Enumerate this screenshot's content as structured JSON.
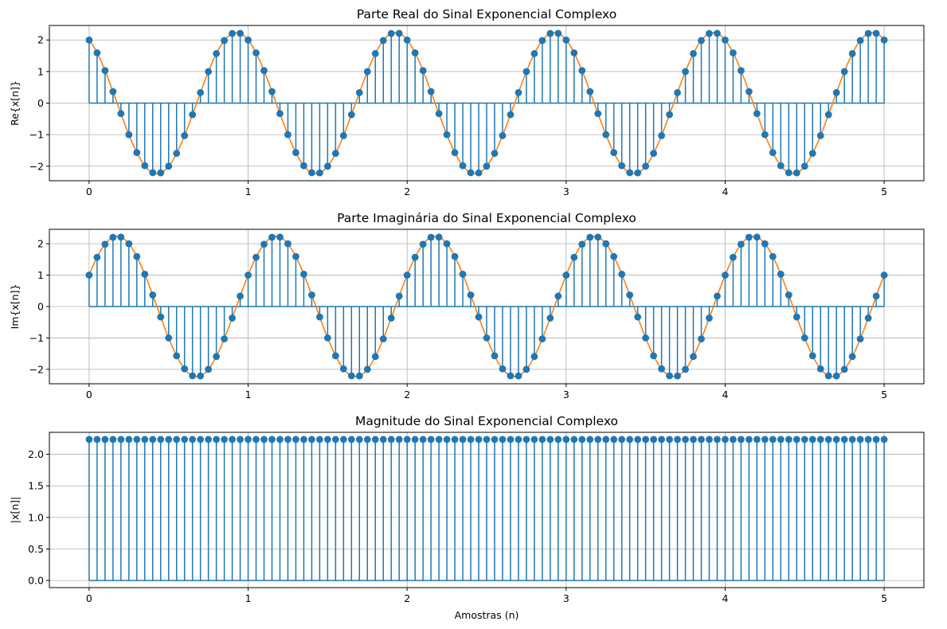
{
  "chart_data": [
    {
      "type": "stem",
      "title": "Parte Real do Sinal Exponencial Complexo",
      "xlabel": "",
      "ylabel": "Re{x[n]}",
      "xlim": [
        -0.25,
        5.25
      ],
      "ylim": [
        -2.46,
        2.46
      ],
      "xticks": [
        0,
        1,
        2,
        3,
        4,
        5
      ],
      "yticks": [
        -2,
        -1,
        0,
        1,
        2
      ],
      "grid": true,
      "samples": {
        "n_start": 0,
        "n_end": 5,
        "count": 101
      },
      "amplitude": 2.2361,
      "frequency": 1.0,
      "phase": 0.4636,
      "function": "real",
      "colors": {
        "stem": "#1f77b4",
        "curve": "#ff7f0e"
      }
    },
    {
      "type": "stem",
      "title": "Parte Imaginária do Sinal Exponencial Complexo",
      "xlabel": "",
      "ylabel": "Im{x[n]}",
      "xlim": [
        -0.25,
        5.25
      ],
      "ylim": [
        -2.46,
        2.46
      ],
      "xticks": [
        0,
        1,
        2,
        3,
        4,
        5
      ],
      "yticks": [
        -2,
        -1,
        0,
        1,
        2
      ],
      "grid": true,
      "samples": {
        "n_start": 0,
        "n_end": 5,
        "count": 101
      },
      "amplitude": 2.2361,
      "frequency": 1.0,
      "phase": 0.4636,
      "function": "imag",
      "colors": {
        "stem": "#1f77b4",
        "curve": "#ff7f0e"
      }
    },
    {
      "type": "stem",
      "title": "Magnitude do Sinal Exponencial Complexo",
      "xlabel": "Amostras (n)",
      "ylabel": "|x[n]|",
      "xlim": [
        -0.25,
        5.25
      ],
      "ylim": [
        -0.112,
        2.348
      ],
      "xticks": [
        0,
        1,
        2,
        3,
        4,
        5
      ],
      "yticks": [
        0.0,
        0.5,
        1.0,
        1.5,
        2.0
      ],
      "ytick_labels": [
        "0.0",
        "0.5",
        "1.0",
        "1.5",
        "2.0"
      ],
      "grid": true,
      "samples": {
        "n_start": 0,
        "n_end": 5,
        "count": 101
      },
      "amplitude": 2.2361,
      "function": "magnitude",
      "colors": {
        "stem": "#1f77b4"
      }
    }
  ]
}
